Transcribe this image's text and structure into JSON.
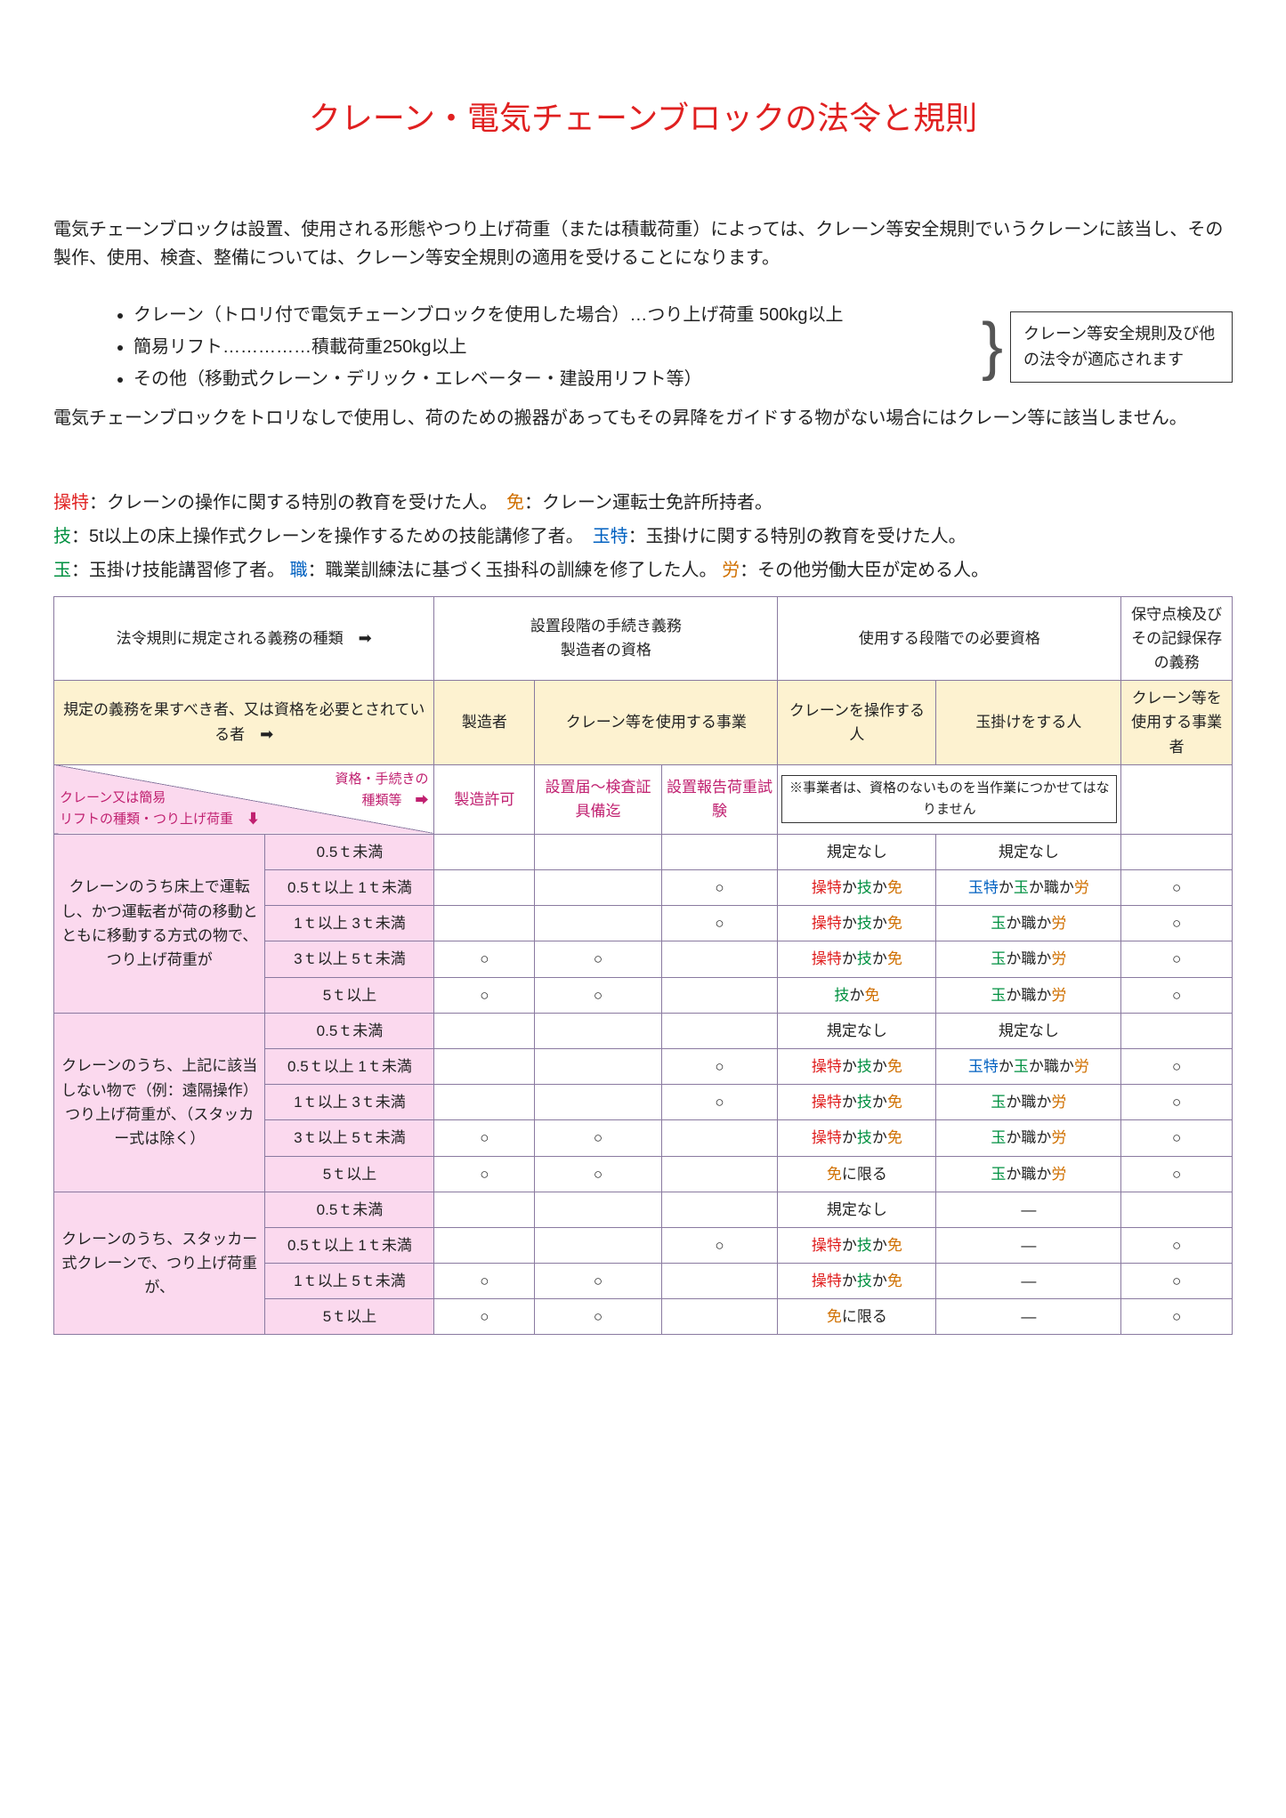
{
  "colors": {
    "title": "#e02020",
    "red": "#e02020",
    "green": "#009040",
    "blue": "#0060c0",
    "orange": "#d07000",
    "magenta": "#c02070",
    "border": "#8a7aa0",
    "header2_bg": "#fdf2d0",
    "rowhdr_bg": "#fbd9ee"
  },
  "title": "クレーン・電気チェーンブロックの法令と規則",
  "intro": "電気チェーンブロックは設置、使用される形態やつり上げ荷重（または積載荷重）によっては、クレーン等安全規則でいうクレーンに該当し、その製作、使用、検査、整備については、クレーン等安全規則の適用を受けることになります。",
  "bullets": [
    "クレーン（トロリ付で電気チェーンブロックを使用した場合）…つり上げ荷重 500kg以上",
    "簡易リフト……………積載荷重250kg以上",
    "その他（移動式クレーン・デリック・エレベーター・建設用リフト等）"
  ],
  "side_box": "クレーン等安全規則及び他の法令が適応されます",
  "post_bullets": "電気チェーンブロックをトロリなしで使用し、荷のための搬器があってもその昇降をガイドする物がない場合にはクレーン等に該当しません。",
  "legend": {
    "soutoku": {
      "key": "操特",
      "text": "：クレーンの操作に関する特別の教育を受けた人。",
      "color": "#e02020"
    },
    "men": {
      "key": "免",
      "text": "：クレーン運転士免許所持者。",
      "color": "#d07000"
    },
    "gi": {
      "key": "技",
      "text": "：5t以上の床上操作式クレーンを操作するための技能講修了者。",
      "color": "#009040"
    },
    "tamatoku": {
      "key": "玉特",
      "text": "：玉掛けに関する特別の教育を受けた人。",
      "color": "#0060c0"
    },
    "tama": {
      "key": "玉",
      "text": "：玉掛け技能講習修了者。",
      "color": "#009040"
    },
    "shoku": {
      "key": "職",
      "text": "：職業訓練法に基づく玉掛科の訓練を修了した人。",
      "color": "#0060c0"
    },
    "rou": {
      "key": "労",
      "text": "：その他労働大臣が定める人。",
      "color": "#d07000"
    }
  },
  "table": {
    "hdr1": {
      "c0": "法令規則に規定される義務の種類",
      "c1": "設置段階の手続き義務\n製造者の資格",
      "c2": "使用する段階での必要資格",
      "c3": "保守点検及びその記録保存の義務"
    },
    "hdr2": {
      "c0": "規定の義務を果すべき者、又は資格を必要とされている者",
      "c1": "製造者",
      "c2": "クレーン等を使用する事業",
      "c3": "クレーンを操作する人",
      "c4": "玉掛けをする人",
      "c5": "クレーン等を使用する事業者"
    },
    "hdr3": {
      "diag_top": "資格・手続きの\n種類等",
      "diag_bot": "クレーン又は簡易\nリフトの種類・つり上げ荷重",
      "c1": "製造許可",
      "c2": "設置届～検査証具備迄",
      "c3": "設置報告荷重試験",
      "note": "※事業者は、資格のないものを当作業につかせてはなりません"
    },
    "groups": [
      {
        "label": "クレーンのうち床上で運転し、かつ運転者が荷の移動とともに移動する方式の物で、つり上げ荷重が",
        "rows": [
          {
            "cap": "0.5ｔ未満",
            "c": [
              "",
              "",
              "",
              "規定なし",
              "規定なし",
              ""
            ]
          },
          {
            "cap": "0.5ｔ以上 1ｔ未満",
            "c": [
              "",
              "",
              "○",
              "SGM",
              "TTSR",
              "○"
            ]
          },
          {
            "cap": "1ｔ以上 3ｔ未満",
            "c": [
              "",
              "",
              "○",
              "SGM",
              "TSR",
              "○"
            ]
          },
          {
            "cap": "3ｔ以上 5ｔ未満",
            "c": [
              "○",
              "○",
              "",
              "SGM",
              "TSR",
              "○"
            ]
          },
          {
            "cap": "5ｔ以上",
            "c": [
              "○",
              "○",
              "",
              "GM",
              "TSR",
              "○"
            ]
          }
        ]
      },
      {
        "label": "クレーンのうち、上記に該当しない物で（例：遠隔操作）つり上げ荷重が、（スタッカー式は除く）",
        "rows": [
          {
            "cap": "0.5ｔ未満",
            "c": [
              "",
              "",
              "",
              "規定なし",
              "規定なし",
              ""
            ]
          },
          {
            "cap": "0.5ｔ以上 1ｔ未満",
            "c": [
              "",
              "",
              "○",
              "SGM",
              "TTSR",
              "○"
            ]
          },
          {
            "cap": "1ｔ以上 3ｔ未満",
            "c": [
              "",
              "",
              "○",
              "SGM",
              "TSR",
              "○"
            ]
          },
          {
            "cap": "3ｔ以上 5ｔ未満",
            "c": [
              "○",
              "○",
              "",
              "SGM",
              "TSR",
              "○"
            ]
          },
          {
            "cap": "5ｔ以上",
            "c": [
              "○",
              "○",
              "",
              "MONLY",
              "TSR",
              "○"
            ]
          }
        ]
      },
      {
        "label": "クレーンのうち、スタッカー式クレーンで、つり上げ荷重が、",
        "rows": [
          {
            "cap": "0.5ｔ未満",
            "c": [
              "",
              "",
              "",
              "規定なし",
              "—",
              ""
            ]
          },
          {
            "cap": "0.5ｔ以上 1ｔ未満",
            "c": [
              "",
              "",
              "○",
              "SGM",
              "—",
              "○"
            ]
          },
          {
            "cap": "1ｔ以上 5ｔ未満",
            "c": [
              "○",
              "○",
              "",
              "SGM",
              "—",
              "○"
            ]
          },
          {
            "cap": "5ｔ以上",
            "c": [
              "○",
              "○",
              "",
              "MONLY",
              "—",
              "○"
            ]
          }
        ]
      }
    ],
    "tokens": {
      "SGM": [
        [
          "操特",
          "#e02020"
        ],
        [
          "か",
          null
        ],
        [
          "技",
          "#009040"
        ],
        [
          "か",
          null
        ],
        [
          "免",
          "#d07000"
        ]
      ],
      "GM": [
        [
          "技",
          "#009040"
        ],
        [
          "か",
          null
        ],
        [
          "免",
          "#d07000"
        ]
      ],
      "MONLY": [
        [
          "免",
          "#d07000"
        ],
        [
          "に限る",
          null
        ]
      ],
      "TTSR": [
        [
          "玉特",
          "#0060c0"
        ],
        [
          "か",
          null
        ],
        [
          "玉",
          "#009040"
        ],
        [
          "か",
          null
        ],
        [
          "職",
          null
        ],
        [
          "か",
          null
        ],
        [
          "労",
          "#d07000"
        ]
      ],
      "TSR": [
        [
          "玉",
          "#009040"
        ],
        [
          "か",
          null
        ],
        [
          "職",
          null
        ],
        [
          "か",
          null
        ],
        [
          "労",
          "#d07000"
        ]
      ]
    }
  }
}
